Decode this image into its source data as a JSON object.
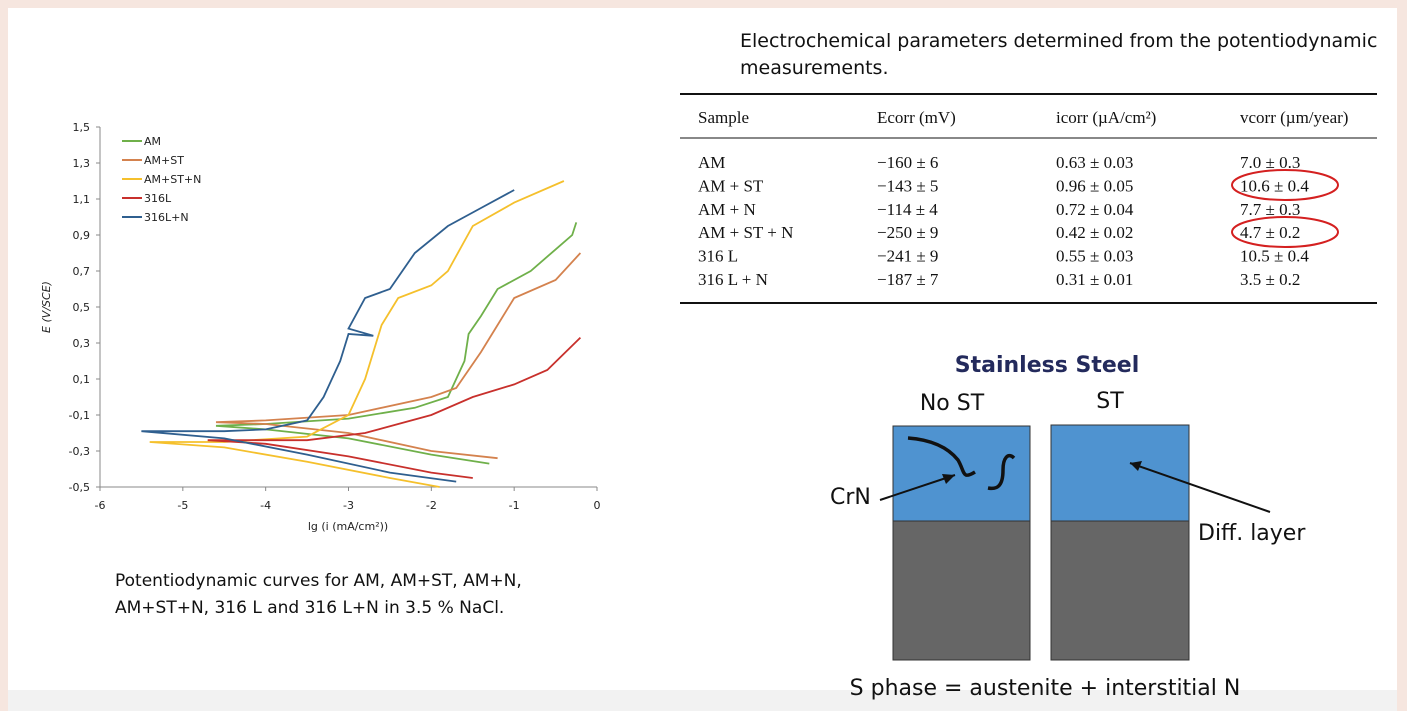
{
  "chart_data": {
    "type": "line",
    "xlabel": "lg (i (mA/cm²))",
    "ylabel": "E (V/SCE)",
    "xlim": [
      -6,
      0
    ],
    "xticks": [
      -6,
      -5,
      -4,
      -3,
      -2,
      -1,
      0
    ],
    "ylim": [
      -0.5,
      1.5
    ],
    "yticks": [
      {
        "value": -0.5,
        "label": "-0,5"
      },
      {
        "value": -0.3,
        "label": "-0,3"
      },
      {
        "value": -0.1,
        "label": "-0,1"
      },
      {
        "value": 0.1,
        "label": "0,1"
      },
      {
        "value": 0.3,
        "label": "0,3"
      },
      {
        "value": 0.5,
        "label": "0,5"
      },
      {
        "value": 0.7,
        "label": "0,7"
      },
      {
        "value": 0.9,
        "label": "0,9"
      },
      {
        "value": 1.1,
        "label": "1,1"
      },
      {
        "value": 1.3,
        "label": "1,3"
      },
      {
        "value": 1.5,
        "label": "1,5"
      }
    ],
    "legend": "upper left",
    "series": [
      {
        "name": "AM",
        "color": "#6fb04a",
        "x": [
          -1.3,
          -2,
          -3,
          -4,
          -4.6,
          -4,
          -3,
          -2.2,
          -1.8,
          -1.6,
          -1.55,
          -1.4,
          -1.2,
          -0.8,
          -0.5,
          -0.3,
          -0.25
        ],
        "values": [
          -0.37,
          -0.32,
          -0.23,
          -0.18,
          -0.16,
          -0.15,
          -0.12,
          -0.06,
          0.0,
          0.2,
          0.35,
          0.45,
          0.6,
          0.7,
          0.82,
          0.9,
          0.97
        ]
      },
      {
        "name": "AM+ST",
        "color": "#d4824e",
        "x": [
          -1.2,
          -2,
          -3,
          -4,
          -4.6,
          -4,
          -3,
          -2,
          -1.7,
          -1.4,
          -1.2,
          -1,
          -0.5,
          -0.2
        ],
        "values": [
          -0.34,
          -0.3,
          -0.2,
          -0.15,
          -0.14,
          -0.13,
          -0.1,
          0.0,
          0.05,
          0.25,
          0.4,
          0.55,
          0.65,
          0.8
        ]
      },
      {
        "name": "AM+ST+N",
        "color": "#f5c02c",
        "x": [
          -1.9,
          -2.5,
          -3.5,
          -4.5,
          -5.4,
          -4.5,
          -3.5,
          -3,
          -2.8,
          -2.6,
          -2.4,
          -2,
          -1.8,
          -1.5,
          -1,
          -0.4
        ],
        "values": [
          -0.5,
          -0.45,
          -0.36,
          -0.28,
          -0.25,
          -0.25,
          -0.22,
          -0.1,
          0.1,
          0.4,
          0.55,
          0.62,
          0.7,
          0.95,
          1.08,
          1.2
        ]
      },
      {
        "name": "316L",
        "color": "#c8302c",
        "x": [
          -1.5,
          -2,
          -3,
          -4,
          -4.7,
          -4,
          -3.5,
          -2.8,
          -2,
          -1.5,
          -1,
          -0.6,
          -0.2
        ],
        "values": [
          -0.45,
          -0.42,
          -0.33,
          -0.26,
          -0.24,
          -0.24,
          -0.24,
          -0.2,
          -0.1,
          0.0,
          0.07,
          0.15,
          0.33
        ]
      },
      {
        "name": "316L+N",
        "color": "#2f5f8f",
        "x": [
          -1.7,
          -2.5,
          -3.5,
          -4.5,
          -5.5,
          -4.5,
          -4,
          -3.5,
          -3.3,
          -3.1,
          -3,
          -2.7,
          -3,
          -2.8,
          -2.5,
          -2.2,
          -1.8,
          -1.4,
          -1
        ],
        "values": [
          -0.47,
          -0.42,
          -0.32,
          -0.23,
          -0.19,
          -0.19,
          -0.18,
          -0.13,
          0.0,
          0.2,
          0.35,
          0.34,
          0.38,
          0.55,
          0.6,
          0.8,
          0.95,
          1.05,
          1.15
        ]
      }
    ]
  },
  "caption": "Potentiodynamic curves for AM, AM+ST, AM+N, AM+ST+N, 316 L and 316 L+N in 3.5 % NaCl.",
  "table": {
    "title": "Electrochemical parameters determined from the potentiodynamic measurements.",
    "header": [
      "Sample",
      "Ecorr (mV)",
      "icorr (µA/cm²)",
      "vcorr (µm/year)"
    ],
    "rows": [
      [
        "AM",
        "−160 ± 6",
        "0.63 ± 0.03",
        "7.0 ± 0.3"
      ],
      [
        "AM + ST",
        "−143 ± 5",
        "0.96 ± 0.05",
        "10.6 ± 0.4"
      ],
      [
        "AM + N",
        "−114 ± 4",
        "0.72 ± 0.04",
        "7.7 ± 0.3"
      ],
      [
        "AM + ST + N",
        "−250 ± 9",
        "0.42 ± 0.02",
        "4.7 ± 0.2"
      ],
      [
        "316 L",
        "−241 ± 9",
        "0.55 ± 0.03",
        "10.5 ± 0.4"
      ],
      [
        "316 L + N",
        "−187 ± 7",
        "0.31 ± 0.01",
        "3.5 ± 0.2"
      ]
    ]
  },
  "diagram": {
    "title": "Stainless Steel",
    "left_label": "No ST",
    "right_label": "ST",
    "crn_label": "CrN",
    "diff_label": "Diff. layer",
    "footer": "S phase = austenite + interstitial N"
  }
}
